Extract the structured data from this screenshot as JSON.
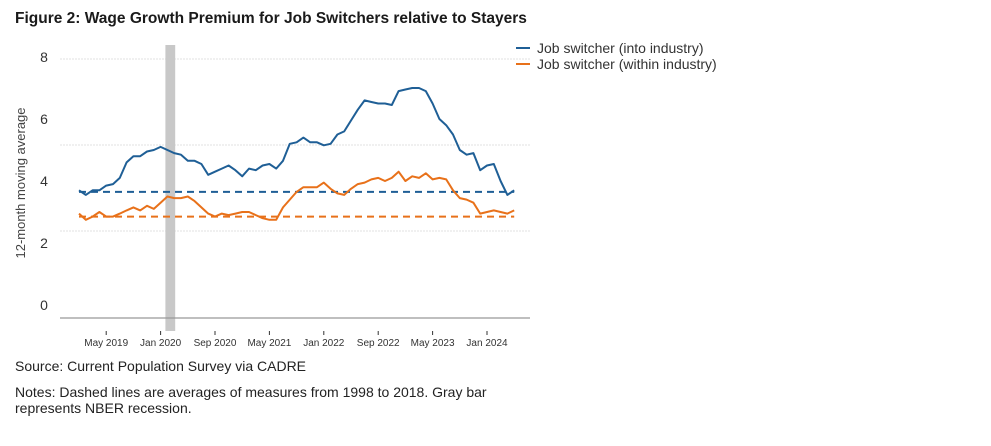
{
  "figure": {
    "title": "Figure 2: Wage Growth Premium for Job Switchers relative to Stayers",
    "source": "Source: Current Population Survey via CADRE",
    "notes": "Notes: Dashed lines are averages of measures from 1998 to 2018. Gray bar represents NBER recession."
  },
  "chart_data": {
    "type": "line",
    "title": "Figure 2: Wage Growth Premium for Job Switchers relative to Stayers",
    "xlabel": "",
    "ylabel": "12-month moving average",
    "ylim": [
      0,
      8
    ],
    "yticks": [
      0,
      2,
      4,
      6,
      8
    ],
    "grid": true,
    "legend_position": "top-right",
    "x_start": "Jan 2019",
    "x_frequency": "monthly",
    "xtick_labels": [
      "May 2019",
      "Jan 2020",
      "Sep 2020",
      "May 2021",
      "Jan 2022",
      "Sep 2022",
      "May 2023",
      "Jan 2024"
    ],
    "xtick_month_index": [
      4,
      12,
      20,
      28,
      36,
      44,
      52,
      60
    ],
    "recession": {
      "start_month_index": 13,
      "end_month_index": 14,
      "label": "NBER recession",
      "color": "#c8c8c8"
    },
    "series": [
      {
        "name": "Job switcher (into industry)",
        "color": "#1f5f96",
        "average_1998_2018": 3.65,
        "values": [
          3.7,
          3.55,
          3.7,
          3.7,
          3.85,
          3.9,
          4.1,
          4.6,
          4.8,
          4.8,
          4.95,
          5.0,
          5.1,
          5.0,
          4.9,
          4.85,
          4.65,
          4.65,
          4.55,
          4.2,
          4.3,
          4.4,
          4.5,
          4.35,
          4.15,
          4.4,
          4.35,
          4.5,
          4.55,
          4.4,
          4.65,
          5.2,
          5.25,
          5.4,
          5.25,
          5.25,
          5.15,
          5.2,
          5.5,
          5.6,
          5.95,
          6.3,
          6.6,
          6.55,
          6.5,
          6.5,
          6.45,
          6.9,
          6.95,
          7.0,
          7.0,
          6.9,
          6.5,
          6.0,
          5.8,
          5.5,
          5.0,
          4.85,
          4.9,
          4.35,
          4.5,
          4.55,
          4.0,
          3.55,
          3.7
        ]
      },
      {
        "name": "Job switcher (within industry)",
        "color": "#e8711a",
        "average_1998_2018": 2.85,
        "values": [
          2.95,
          2.75,
          2.85,
          3.0,
          2.85,
          2.85,
          2.95,
          3.05,
          3.15,
          3.05,
          3.2,
          3.1,
          3.3,
          3.5,
          3.45,
          3.45,
          3.5,
          3.35,
          3.15,
          2.95,
          2.85,
          2.95,
          2.9,
          2.95,
          3.0,
          3.0,
          2.9,
          2.8,
          2.75,
          2.75,
          3.15,
          3.4,
          3.65,
          3.8,
          3.8,
          3.8,
          3.95,
          3.75,
          3.6,
          3.55,
          3.75,
          3.9,
          3.95,
          4.05,
          4.1,
          4.0,
          4.1,
          4.3,
          4.0,
          4.15,
          4.1,
          4.25,
          4.05,
          4.1,
          4.05,
          3.7,
          3.45,
          3.4,
          3.3,
          2.95,
          3.0,
          3.05,
          3.0,
          2.95,
          3.05
        ]
      }
    ]
  }
}
